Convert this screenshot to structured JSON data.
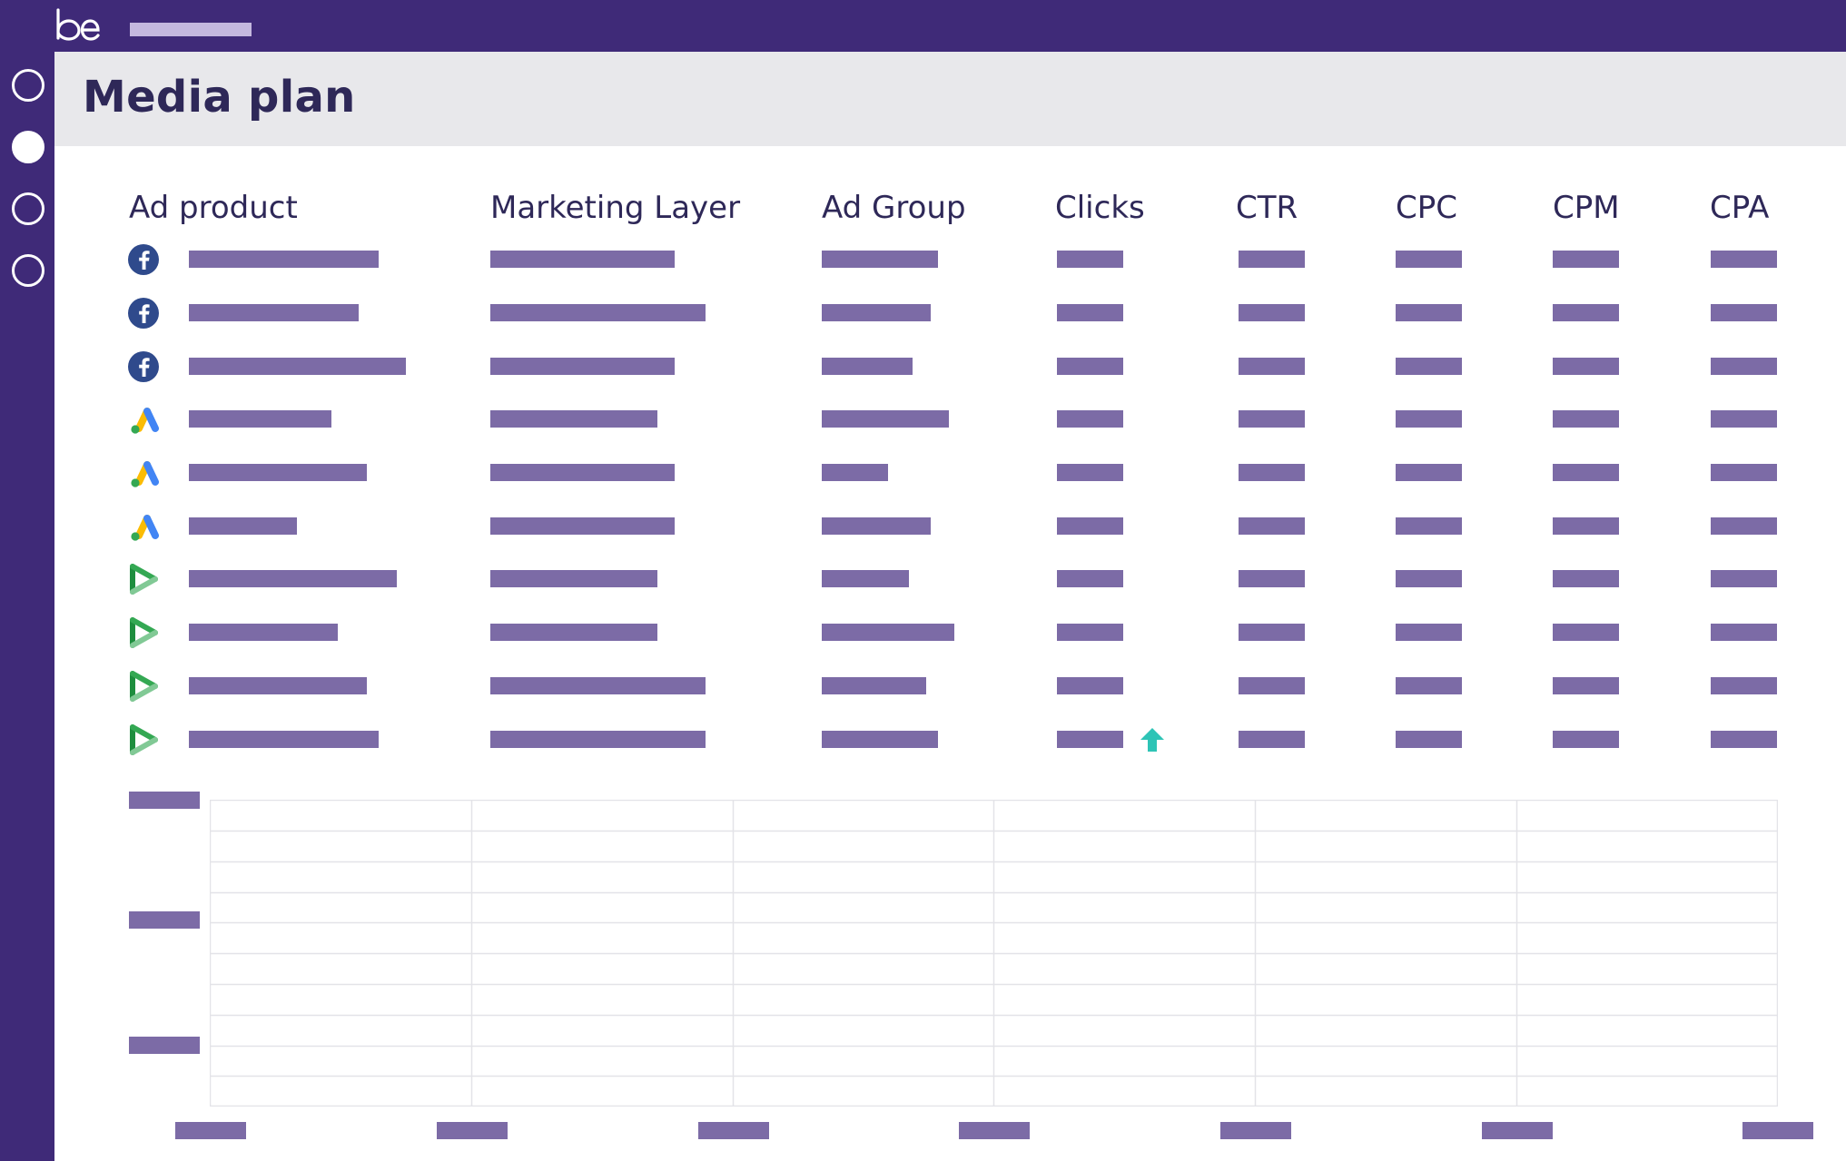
{
  "app": {
    "logo_text": "be",
    "colors": {
      "brand": "#3f2a78",
      "header_bg": "#e8e8eb",
      "text": "#2e2858",
      "placeholder": "#7c6ba6",
      "trend_up": "#2ec4b6"
    }
  },
  "sidebar": {
    "items": [
      {
        "name": "nav-item-1",
        "active": false
      },
      {
        "name": "nav-item-2",
        "active": true
      },
      {
        "name": "nav-item-3",
        "active": false
      },
      {
        "name": "nav-item-4",
        "active": false
      }
    ]
  },
  "header": {
    "title": "Media plan"
  },
  "table": {
    "columns": [
      "Ad product",
      "Marketing Layer",
      "Ad Group",
      "Clicks",
      "CTR",
      "CPC",
      "CPM",
      "CPA"
    ],
    "rows": [
      {
        "platform": "facebook-icon"
      },
      {
        "platform": "facebook-icon"
      },
      {
        "platform": "facebook-icon"
      },
      {
        "platform": "google-ads-icon"
      },
      {
        "platform": "google-ads-icon"
      },
      {
        "platform": "google-ads-icon"
      },
      {
        "platform": "display-video-icon"
      },
      {
        "platform": "display-video-icon"
      },
      {
        "platform": "display-video-icon"
      },
      {
        "platform": "display-video-icon",
        "trend": "up-arrow-icon"
      }
    ]
  },
  "chart": {
    "grid": "on"
  }
}
